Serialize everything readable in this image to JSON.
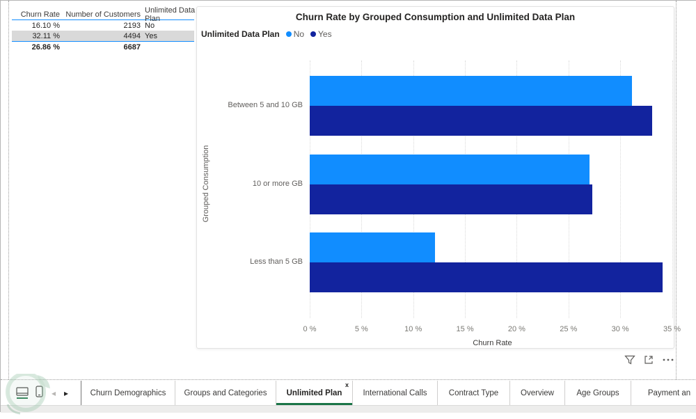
{
  "table": {
    "columns": [
      "Churn Rate",
      "Number of Customers",
      "Unlimited Data Plan"
    ],
    "rows": [
      {
        "churn_rate": "16.10 %",
        "customers": "2193",
        "plan": "No",
        "highlighted": false
      },
      {
        "churn_rate": "32.11 %",
        "customers": "4494",
        "plan": "Yes",
        "highlighted": true
      }
    ],
    "total": {
      "churn_rate": "26.86 %",
      "customers": "6687",
      "plan": ""
    }
  },
  "chart_data": {
    "type": "bar",
    "orientation": "horizontal",
    "title": "Churn Rate by Grouped Consumption and Unlimited Data Plan",
    "legend_title": "Unlimited Data Plan",
    "legend_position": "top-left",
    "categories": [
      "Between 5 and 10 GB",
      "10 or more GB",
      "Less than 5 GB"
    ],
    "series": [
      {
        "name": "No",
        "color": "#118DFF",
        "values": [
          31.1,
          27.0,
          12.1
        ]
      },
      {
        "name": "Yes",
        "color": "#12239E",
        "values": [
          33.1,
          27.3,
          34.1
        ]
      }
    ],
    "xlabel": "Churn Rate",
    "ylabel": "Grouped Consumption",
    "x_tick_labels": [
      "0 %",
      "5 %",
      "10 %",
      "15 %",
      "20 %",
      "25 %",
      "30 %",
      "35 %"
    ],
    "x_tick_values": [
      0,
      5,
      10,
      15,
      20,
      25,
      30,
      35
    ],
    "xlim": [
      0,
      35.3
    ],
    "grid": true
  },
  "visual_toolbar": {
    "icons": [
      "filter-icon",
      "focus-mode-icon",
      "more-options-icon"
    ]
  },
  "tabbar": {
    "tabs": [
      {
        "label": "Churn Demographics",
        "active": false
      },
      {
        "label": "Groups and Categories",
        "active": false
      },
      {
        "label": "Unlimited Plan",
        "active": true,
        "close_label": "x"
      },
      {
        "label": "International Calls",
        "active": false
      },
      {
        "label": "Contract Type",
        "active": false
      },
      {
        "label": "Overview",
        "active": false
      },
      {
        "label": "Age Groups",
        "active": false
      },
      {
        "label": "Payment an",
        "active": false
      }
    ]
  },
  "colors": {
    "table_divider": "#118DFF",
    "row_highlight": "#D9D9D9",
    "active_tab_underline": "#1A7446",
    "series_no": "#118DFF",
    "series_yes": "#12239E"
  }
}
